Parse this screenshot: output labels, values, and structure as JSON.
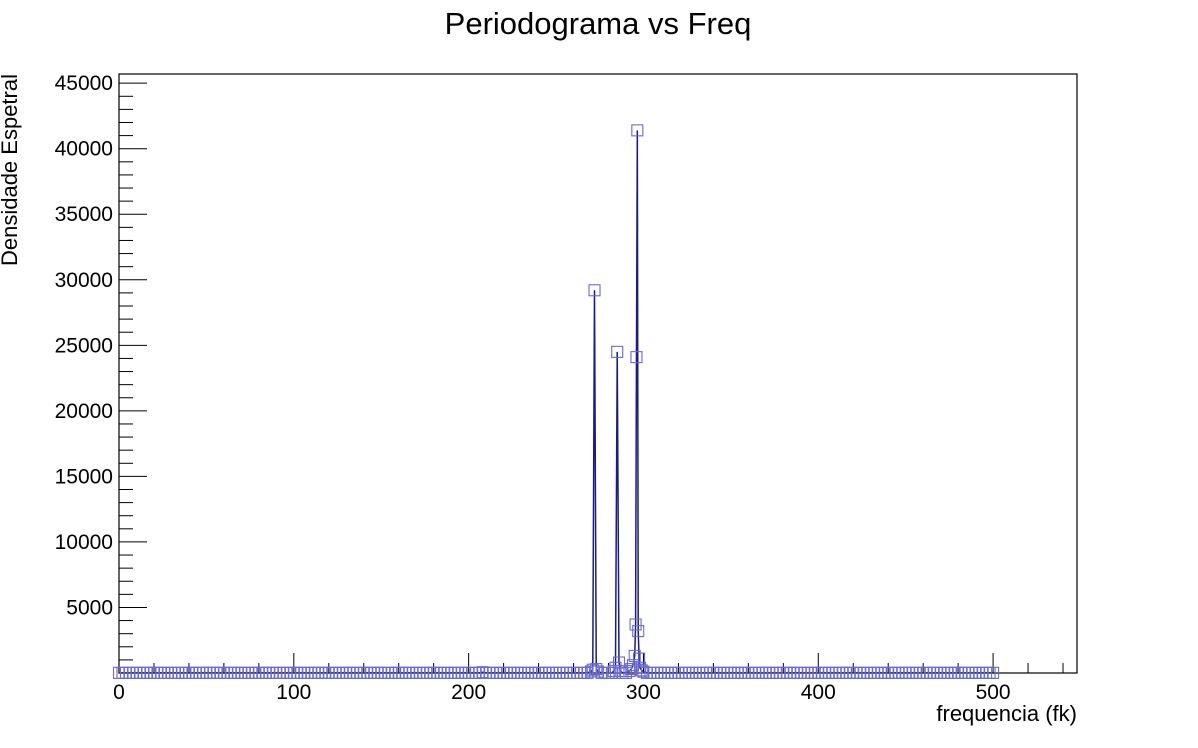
{
  "chart_data": {
    "type": "line",
    "title": "Periodograma vs Freq",
    "xlabel": "frequencia (fk)",
    "ylabel": "Densidade Espetral",
    "xlim": [
      0,
      548
    ],
    "ylim": [
      0,
      45700
    ],
    "x_ticks": [
      0,
      100,
      200,
      300,
      400,
      500
    ],
    "y_ticks": [
      5000,
      10000,
      15000,
      20000,
      25000,
      30000,
      35000,
      40000,
      45000
    ],
    "grid": false,
    "legend": "none",
    "colors": {
      "series": "#1a1a8c",
      "marker": "#6a6ad0",
      "axis": "#000000"
    },
    "series": [
      {
        "baseline": {
          "x_start": 0,
          "x_end": 500,
          "x_step": 2,
          "y": 10
        },
        "points": [
          {
            "x": 208,
            "y": 60
          },
          {
            "x": 270,
            "y": 120
          },
          {
            "x": 271,
            "y": 250
          },
          {
            "x": 272,
            "y": 29200
          },
          {
            "x": 273,
            "y": 300
          },
          {
            "x": 274,
            "y": 120
          },
          {
            "x": 283,
            "y": 150
          },
          {
            "x": 284,
            "y": 400
          },
          {
            "x": 285,
            "y": 24500
          },
          {
            "x": 286,
            "y": 800
          },
          {
            "x": 287,
            "y": 150
          },
          {
            "x": 292,
            "y": 150
          },
          {
            "x": 293,
            "y": 300
          },
          {
            "x": 294,
            "y": 600
          },
          {
            "x": 295,
            "y": 1300
          },
          {
            "x": 295.5,
            "y": 3700
          },
          {
            "x": 296,
            "y": 24100
          },
          {
            "x": 296.5,
            "y": 41400
          },
          {
            "x": 297,
            "y": 3200
          },
          {
            "x": 297.5,
            "y": 1100
          },
          {
            "x": 298,
            "y": 400
          },
          {
            "x": 299,
            "y": 200
          },
          {
            "x": 300,
            "y": 100
          }
        ]
      }
    ]
  }
}
